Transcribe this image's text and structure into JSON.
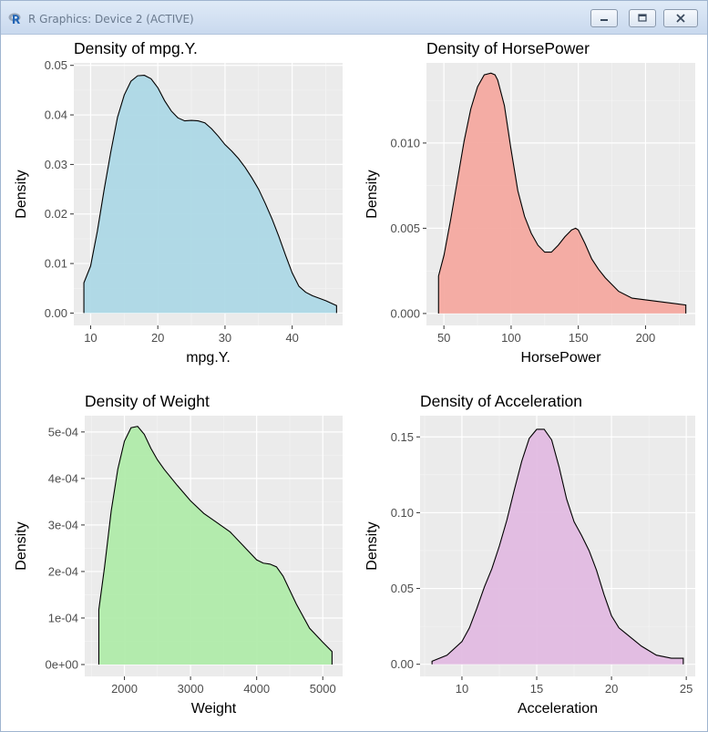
{
  "window": {
    "title": "R Graphics: Device 2 (ACTIVE)",
    "app_icon": "r-logo-icon",
    "buttons": [
      {
        "name": "minimize",
        "icon": "minimize-icon"
      },
      {
        "name": "maximize",
        "icon": "maximize-icon"
      },
      {
        "name": "close",
        "icon": "close-icon"
      }
    ]
  },
  "chart_data": [
    {
      "type": "area",
      "title": "Density of mpg.Y.",
      "xlabel": "mpg.Y.",
      "ylabel": "Density",
      "fill": "#add8e6",
      "xlim": [
        7.5,
        47.5
      ],
      "ylim": [
        -0.0025,
        0.0505
      ],
      "x_ticks": [
        10,
        20,
        30,
        40
      ],
      "x_tick_labels": [
        "10",
        "20",
        "30",
        "40"
      ],
      "y_ticks": [
        0,
        0.01,
        0.02,
        0.03,
        0.04,
        0.05
      ],
      "y_tick_labels": [
        "0.00",
        "0.01",
        "0.02",
        "0.03",
        "0.04",
        "0.05"
      ],
      "x": [
        9.0,
        10.0,
        11.0,
        12.0,
        13.0,
        14.0,
        15.0,
        16.0,
        17.0,
        18.0,
        19.0,
        20.0,
        21.0,
        22.0,
        23.0,
        24.0,
        25.0,
        26.0,
        27.0,
        28.0,
        29.0,
        30.0,
        31.0,
        32.0,
        33.0,
        34.0,
        35.0,
        36.0,
        37.0,
        38.0,
        39.0,
        40.0,
        41.0,
        42.0,
        43.0,
        44.0,
        45.0,
        46.6
      ],
      "y": [
        0.0061,
        0.0095,
        0.0165,
        0.0248,
        0.0325,
        0.0395,
        0.044,
        0.0468,
        0.0479,
        0.048,
        0.0473,
        0.0455,
        0.0429,
        0.0408,
        0.0394,
        0.0388,
        0.0389,
        0.0388,
        0.0384,
        0.0372,
        0.0357,
        0.034,
        0.0327,
        0.0312,
        0.0294,
        0.0273,
        0.025,
        0.0221,
        0.019,
        0.0155,
        0.0117,
        0.0081,
        0.0054,
        0.0042,
        0.0035,
        0.003,
        0.0025,
        0.0015
      ]
    },
    {
      "type": "area",
      "title": "Density of HorsePower",
      "xlabel": "HorsePower",
      "ylabel": "Density",
      "fill": "#f4a9a0",
      "xlim": [
        37,
        237
      ],
      "ylim": [
        -0.0007,
        0.0147
      ],
      "x_ticks": [
        50,
        100,
        150,
        200
      ],
      "x_tick_labels": [
        "50",
        "100",
        "150",
        "200"
      ],
      "y_ticks": [
        0,
        0.005,
        0.01
      ],
      "y_tick_labels": [
        "0.000",
        "0.005",
        "0.010"
      ],
      "x": [
        46,
        50,
        55,
        60,
        65,
        70,
        75,
        80,
        85,
        88,
        90,
        95,
        100,
        105,
        110,
        115,
        120,
        125,
        130,
        135,
        140,
        145,
        148,
        150,
        155,
        160,
        165,
        170,
        175,
        180,
        190,
        200,
        210,
        220,
        230
      ],
      "y": [
        0.0022,
        0.0034,
        0.0055,
        0.0078,
        0.0101,
        0.012,
        0.0133,
        0.014,
        0.0141,
        0.014,
        0.0137,
        0.0122,
        0.0096,
        0.0072,
        0.0057,
        0.0047,
        0.004,
        0.0036,
        0.0036,
        0.004,
        0.0045,
        0.0049,
        0.005,
        0.0049,
        0.0041,
        0.0032,
        0.0026,
        0.0021,
        0.0017,
        0.0013,
        0.0009,
        0.0008,
        0.0007,
        0.0006,
        0.0005
      ]
    },
    {
      "type": "area",
      "title": "Density of Weight",
      "xlabel": "Weight",
      "ylabel": "Density",
      "fill": "#b0ebaa",
      "xlim": [
        1400,
        5300
      ],
      "ylim": [
        -2.55e-05,
        0.000535
      ],
      "x_ticks": [
        2000,
        3000,
        4000,
        5000
      ],
      "x_tick_labels": [
        "2000",
        "3000",
        "4000",
        "5000"
      ],
      "y_ticks": [
        0,
        0.0001,
        0.0002,
        0.0003,
        0.0004,
        0.0005
      ],
      "y_tick_labels": [
        "0e+00",
        "1e-04",
        "2e-04",
        "3e-04",
        "4e-04",
        "5e-04"
      ],
      "x": [
        1613,
        1700,
        1800,
        1900,
        2000,
        2100,
        2200,
        2300,
        2400,
        2500,
        2600,
        2800,
        3000,
        3200,
        3400,
        3600,
        3800,
        4000,
        4100,
        4200,
        4300,
        4400,
        4600,
        4800,
        5000,
        5140
      ],
      "y": [
        0.000118,
        0.00021,
        0.00033,
        0.00042,
        0.00048,
        0.000509,
        0.000512,
        0.000495,
        0.000465,
        0.00044,
        0.00042,
        0.000385,
        0.000352,
        0.000325,
        0.000305,
        0.000285,
        0.000255,
        0.000225,
        0.000218,
        0.000216,
        0.00021,
        0.00019,
        0.00013,
        7.8e-05,
        4.8e-05,
        2.8e-05
      ]
    },
    {
      "type": "area",
      "title": "Density of Acceleration",
      "xlabel": "Acceleration",
      "ylabel": "Density",
      "fill": "#e2bbe2",
      "xlim": [
        7.2,
        25.6
      ],
      "ylim": [
        -0.008,
        0.164
      ],
      "x_ticks": [
        10,
        15,
        20,
        25
      ],
      "x_tick_labels": [
        "10",
        "15",
        "20",
        "25"
      ],
      "y_ticks": [
        0,
        0.05,
        0.1,
        0.15
      ],
      "y_tick_labels": [
        "0.00",
        "0.05",
        "0.10",
        "0.15"
      ],
      "x": [
        8.0,
        9.0,
        10.0,
        10.5,
        11.0,
        11.5,
        12.0,
        12.5,
        13.0,
        13.5,
        14.0,
        14.5,
        15.0,
        15.5,
        16.0,
        16.5,
        17.0,
        17.5,
        18.0,
        18.5,
        19.0,
        19.5,
        20.0,
        20.5,
        21.0,
        22.0,
        23.0,
        24.0,
        24.8
      ],
      "y": [
        0.002,
        0.006,
        0.015,
        0.024,
        0.037,
        0.051,
        0.063,
        0.078,
        0.095,
        0.115,
        0.134,
        0.149,
        0.155,
        0.155,
        0.148,
        0.13,
        0.109,
        0.094,
        0.085,
        0.075,
        0.062,
        0.046,
        0.032,
        0.024,
        0.02,
        0.012,
        0.006,
        0.004,
        0.004
      ]
    }
  ]
}
